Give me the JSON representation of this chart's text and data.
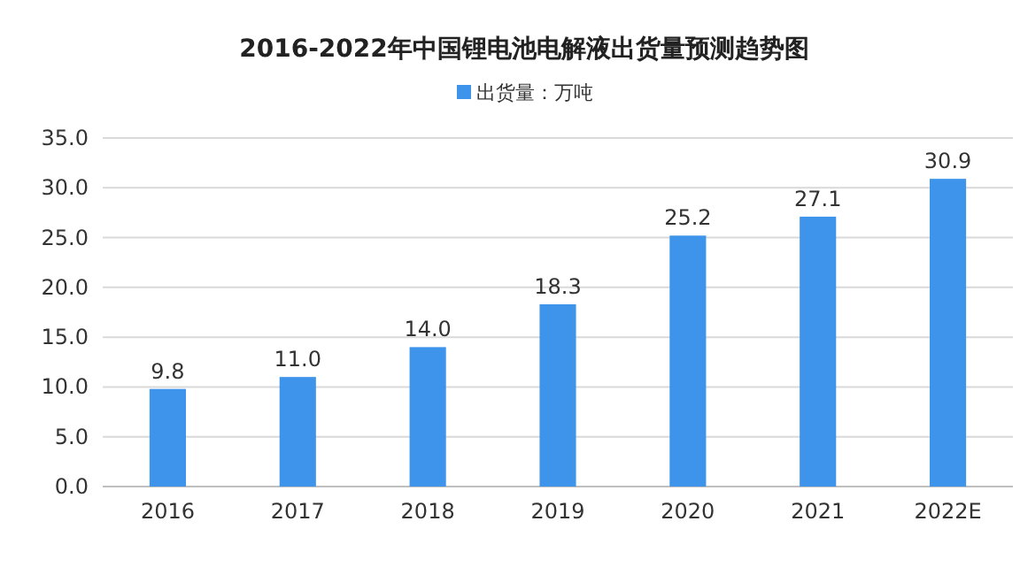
{
  "chart_data": {
    "type": "bar",
    "title": "2016-2022年中国锂电池电解液出货量预测趋势图",
    "categories": [
      "2016",
      "2017",
      "2018",
      "2019",
      "2020",
      "2021",
      "2022E"
    ],
    "series": [
      {
        "name": "出货量：万吨",
        "color": "#3d94ea",
        "values": [
          9.8,
          11.0,
          14.0,
          18.3,
          25.2,
          27.1,
          30.9
        ]
      }
    ],
    "value_labels": [
      "9.8",
      "11.0",
      "14.0",
      "18.3",
      "25.2",
      "27.1",
      "30.9"
    ],
    "ylim": [
      0,
      35
    ],
    "yticks": [
      {
        "value": 0,
        "label": "0.0"
      },
      {
        "value": 5,
        "label": "5.0"
      },
      {
        "value": 10,
        "label": "10.0"
      },
      {
        "value": 15,
        "label": "15.0"
      },
      {
        "value": 20,
        "label": "20.0"
      },
      {
        "value": 25,
        "label": "25.0"
      },
      {
        "value": 30,
        "label": "30.0"
      },
      {
        "value": 35,
        "label": "35.0"
      }
    ],
    "grid": "y",
    "legend": "top"
  }
}
